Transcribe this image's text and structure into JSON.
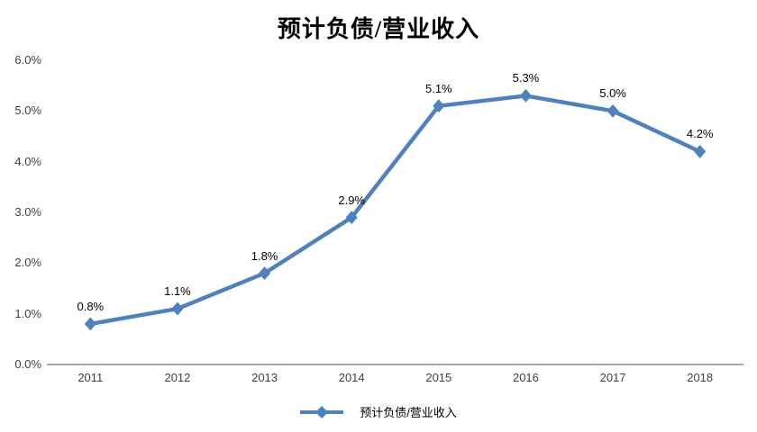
{
  "chart_data": {
    "type": "line",
    "title": "预计负债/营业收入",
    "categories": [
      "2011",
      "2012",
      "2013",
      "2014",
      "2015",
      "2016",
      "2017",
      "2018"
    ],
    "series": [
      {
        "name": "预计负债/营业收入",
        "values": [
          0.8,
          1.1,
          1.8,
          2.9,
          5.1,
          5.3,
          5.0,
          4.2
        ],
        "labels": [
          "0.8%",
          "1.1%",
          "1.8%",
          "2.9%",
          "5.1%",
          "5.3%",
          "5.0%",
          "4.2%"
        ],
        "color": "#4F81BD"
      }
    ],
    "xlabel": "",
    "ylabel": "",
    "ylim": [
      0,
      6
    ],
    "yticks": [
      "0.0%",
      "1.0%",
      "2.0%",
      "3.0%",
      "4.0%",
      "5.0%",
      "6.0%"
    ],
    "ytick_values": [
      0,
      1,
      2,
      3,
      4,
      5,
      6
    ],
    "grid": false,
    "legend_position": "bottom",
    "marker": "diamond",
    "colors": {
      "line": "#4F81BD",
      "axis": "#a6a6a6",
      "tick_text": "#3f3f3f",
      "data_label_text": "#000000",
      "background": "#ffffff"
    }
  }
}
